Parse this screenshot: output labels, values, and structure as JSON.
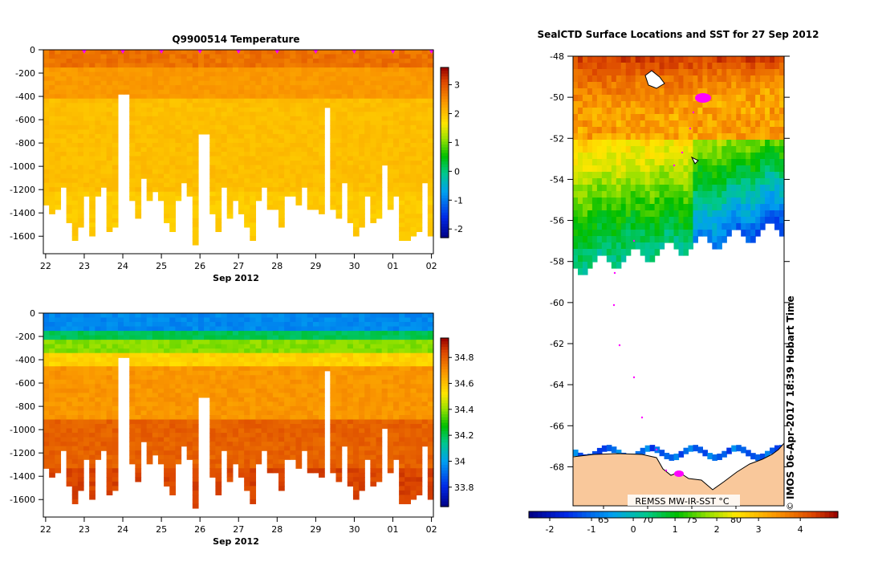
{
  "chart_data": [
    {
      "type": "heatmap",
      "title": "Q9900514  Temperature",
      "xlabel": "Sep 2012",
      "x_ticks": [
        "22",
        "23",
        "24",
        "25",
        "26",
        "27",
        "28",
        "29",
        "30",
        "01",
        "02"
      ],
      "y_ticks": [
        0,
        -200,
        -400,
        -600,
        -800,
        -1000,
        -1200,
        -1400,
        -1600
      ],
      "ylim": [
        -1750,
        0
      ],
      "colorbar_ticks": [
        3,
        2,
        1,
        0,
        -1,
        -2
      ],
      "colorbar_range": [
        -2.3,
        3.6
      ],
      "profile_markers_days": [
        23,
        24,
        25,
        26,
        27,
        28,
        29,
        30,
        31,
        32
      ]
    },
    {
      "type": "heatmap",
      "title": "",
      "xlabel": "Sep 2012",
      "x_ticks": [
        "22",
        "23",
        "24",
        "25",
        "26",
        "27",
        "28",
        "29",
        "30",
        "01",
        "02"
      ],
      "y_ticks": [
        0,
        -200,
        -400,
        -600,
        -800,
        -1000,
        -1200,
        -1400,
        -1600
      ],
      "ylim": [
        -1750,
        0
      ],
      "colorbar_ticks": [
        34.8,
        34.6,
        34.4,
        34.2,
        34,
        33.8
      ],
      "colorbar_range": [
        33.65,
        34.95
      ]
    },
    {
      "type": "heatmap",
      "title": "SealCTD Surface Locations and SST for 27 Sep 2012",
      "y_ticks": [
        -48,
        -50,
        -52,
        -54,
        -56,
        -58,
        -60,
        -62,
        -64,
        -66,
        -68
      ],
      "ylim": [
        -69.9,
        -48
      ],
      "inner_label": "REMSS MW-IR-SST °C",
      "inner_ticks": [
        "65",
        "70",
        "75",
        "80"
      ],
      "colorbar_ticks": [
        "-2",
        "-1",
        "0",
        "1",
        "2",
        "3",
        "4"
      ],
      "colorbar_range": [
        -2.5,
        4.9
      ]
    }
  ],
  "stamp": "IMOS 06-Apr-2017 18:39 Hobart Time",
  "copyright": "©",
  "colors": {
    "land": "#f9c89b",
    "track": "#ff00ff",
    "white": "#ffffff"
  }
}
